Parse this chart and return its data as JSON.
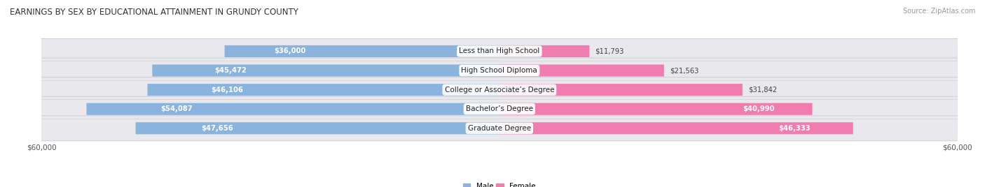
{
  "title": "EARNINGS BY SEX BY EDUCATIONAL ATTAINMENT IN GRUNDY COUNTY",
  "source": "Source: ZipAtlas.com",
  "categories": [
    "Less than High School",
    "High School Diploma",
    "College or Associate’s Degree",
    "Bachelor’s Degree",
    "Graduate Degree"
  ],
  "male_values": [
    36000,
    45472,
    46106,
    54087,
    47656
  ],
  "female_values": [
    11793,
    21563,
    31842,
    40990,
    46333
  ],
  "male_labels": [
    "$36,000",
    "$45,472",
    "$46,106",
    "$54,087",
    "$47,656"
  ],
  "female_labels": [
    "$11,793",
    "$21,563",
    "$31,842",
    "$40,990",
    "$46,333"
  ],
  "male_color": "#8ab4de",
  "female_color": "#f07cb0",
  "max_value": 60000,
  "xlabel_left": "$60,000",
  "xlabel_right": "$60,000",
  "bg_color": "#ffffff",
  "row_bg_color": "#e8e8ed",
  "title_fontsize": 8.5,
  "bar_label_fontsize": 7.2,
  "category_fontsize": 7.5,
  "axis_fontsize": 7.5,
  "legend_fontsize": 7.5,
  "bar_height": 0.62,
  "source_fontsize": 7.0
}
